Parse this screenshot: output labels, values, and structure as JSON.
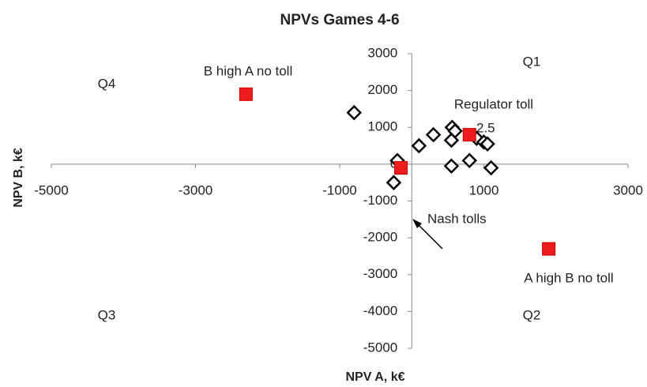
{
  "chart_data": {
    "type": "scatter",
    "title": "NPVs Games 4-6",
    "xlabel": "NPV A, k€",
    "ylabel": "NPV B, k€",
    "xlim": [
      -5000,
      3000
    ],
    "xticks": [
      -5000,
      -3000,
      -1000,
      1000,
      3000
    ],
    "ylim": [
      -5000,
      3000
    ],
    "yticks": [
      3000,
      2000,
      1000,
      0,
      -1000,
      -2000,
      -3000,
      -4000,
      -5000
    ],
    "series": [
      {
        "marker": "diamond",
        "color": "#000000",
        "x": [
          -800,
          -200,
          -250,
          100,
          300,
          560,
          600,
          550,
          900,
          1000,
          1050,
          550,
          800,
          1100
        ],
        "y": [
          1400,
          100,
          -500,
          500,
          800,
          1000,
          900,
          650,
          700,
          600,
          550,
          -50,
          100,
          -100
        ]
      },
      {
        "marker": "square",
        "color": "#ee1c1c",
        "x": [
          -2300,
          800,
          -150,
          1900
        ],
        "y": [
          1900,
          800,
          -100,
          -2300
        ]
      }
    ],
    "annotations": [
      "Q1",
      "Q2",
      "Q3",
      "Q4",
      "B high A no toll",
      "Regulator toll",
      "2.5",
      "Nash tolls",
      "A high B no toll"
    ]
  }
}
